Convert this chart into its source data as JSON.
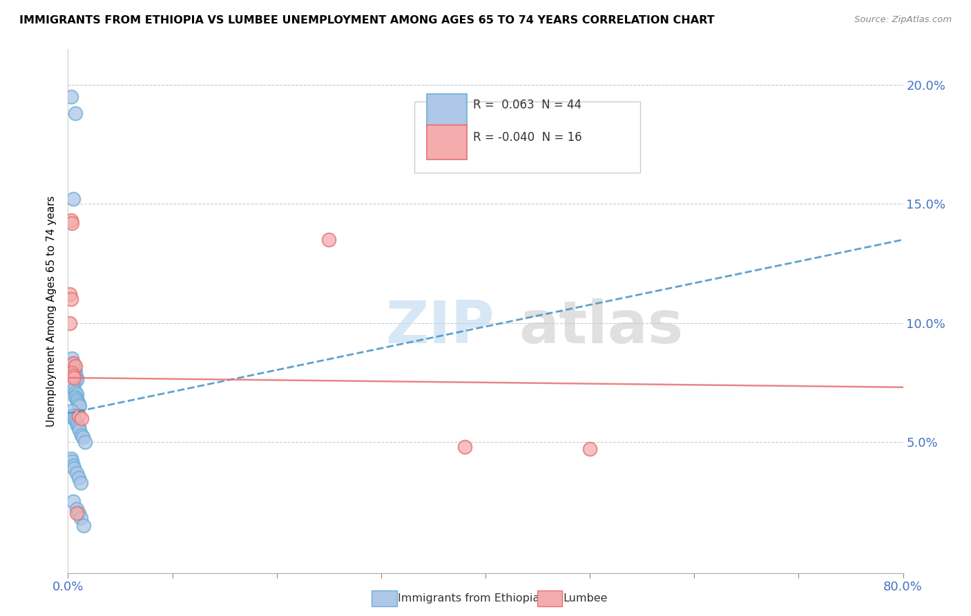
{
  "title": "IMMIGRANTS FROM ETHIOPIA VS LUMBEE UNEMPLOYMENT AMONG AGES 65 TO 74 YEARS CORRELATION CHART",
  "source": "Source: ZipAtlas.com",
  "ylabel": "Unemployment Among Ages 65 to 74 years",
  "xmin": 0.0,
  "xmax": 0.8,
  "ymin": -0.005,
  "ymax": 0.215,
  "yticks": [
    0.05,
    0.1,
    0.15,
    0.2
  ],
  "ytick_labels": [
    "5.0%",
    "10.0%",
    "15.0%",
    "20.0%"
  ],
  "blue_R": 0.063,
  "blue_N": 44,
  "pink_R": -0.04,
  "pink_N": 16,
  "blue_color": "#AEC6E8",
  "pink_color": "#F4ACAC",
  "blue_edge_color": "#6BAED6",
  "pink_edge_color": "#E87070",
  "blue_line_color": "#4393C3",
  "pink_line_color": "#E87070",
  "legend_label_blue": "Immigrants from Ethiopia",
  "legend_label_pink": "Lumbee",
  "watermark": "ZIPatlas",
  "blue_dots_x": [
    0.003,
    0.007,
    0.005,
    0.004,
    0.005,
    0.006,
    0.006,
    0.007,
    0.006,
    0.007,
    0.008,
    0.008,
    0.005,
    0.006,
    0.007,
    0.008,
    0.007,
    0.008,
    0.009,
    0.01,
    0.011,
    0.004,
    0.005,
    0.006,
    0.007,
    0.008,
    0.009,
    0.01,
    0.011,
    0.013,
    0.014,
    0.016,
    0.003,
    0.004,
    0.005,
    0.006,
    0.008,
    0.01,
    0.012,
    0.005,
    0.008,
    0.01,
    0.012,
    0.015
  ],
  "blue_dots_y": [
    0.195,
    0.188,
    0.152,
    0.085,
    0.083,
    0.082,
    0.081,
    0.08,
    0.079,
    0.078,
    0.077,
    0.076,
    0.074,
    0.072,
    0.071,
    0.07,
    0.069,
    0.068,
    0.067,
    0.066,
    0.065,
    0.063,
    0.061,
    0.06,
    0.059,
    0.058,
    0.057,
    0.056,
    0.055,
    0.053,
    0.052,
    0.05,
    0.043,
    0.042,
    0.04,
    0.039,
    0.037,
    0.035,
    0.033,
    0.025,
    0.022,
    0.02,
    0.018,
    0.015
  ],
  "pink_dots_x": [
    0.002,
    0.003,
    0.003,
    0.004,
    0.002,
    0.005,
    0.007,
    0.004,
    0.005,
    0.006,
    0.01,
    0.013,
    0.008,
    0.25,
    0.38,
    0.5
  ],
  "pink_dots_y": [
    0.112,
    0.11,
    0.143,
    0.142,
    0.1,
    0.083,
    0.082,
    0.079,
    0.078,
    0.077,
    0.061,
    0.06,
    0.02,
    0.135,
    0.048,
    0.047
  ]
}
